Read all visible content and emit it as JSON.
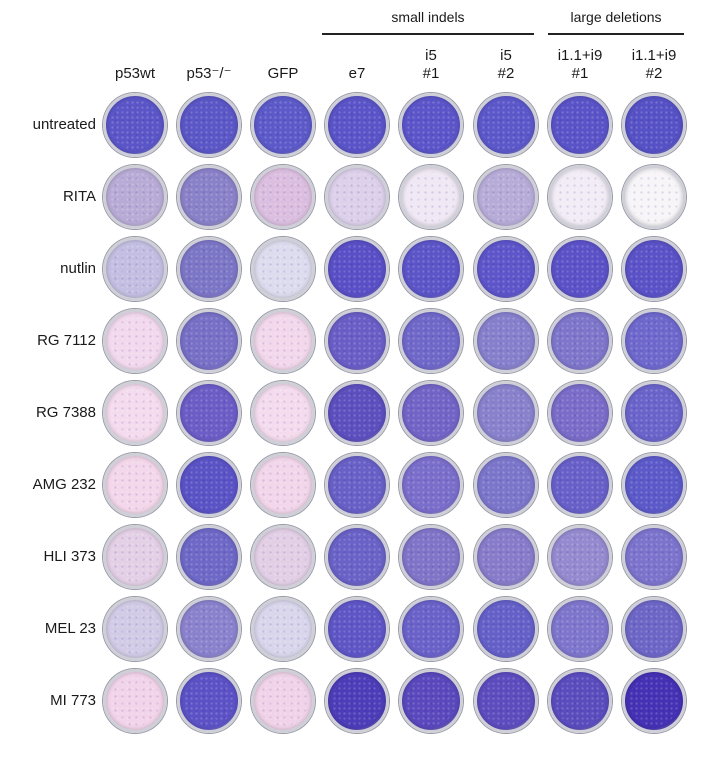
{
  "groups": [
    {
      "label": "small indels"
    },
    {
      "label": "large deletions"
    }
  ],
  "columns": [
    {
      "line1": "p53wt",
      "line2": ""
    },
    {
      "line1": "p53⁻/⁻",
      "line2": ""
    },
    {
      "line1": "GFP",
      "line2": ""
    },
    {
      "line1": "e7",
      "line2": ""
    },
    {
      "line1": "i5",
      "line2": "#1"
    },
    {
      "line1": "i5",
      "line2": "#2"
    },
    {
      "line1": "i1.1+i9",
      "line2": "#1"
    },
    {
      "line1": "i1.1+i9",
      "line2": "#2"
    }
  ],
  "rows": [
    {
      "label": "untreated"
    },
    {
      "label": "RITA"
    },
    {
      "label": "nutlin"
    },
    {
      "label": "RG 7112"
    },
    {
      "label": "RG 7388"
    },
    {
      "label": "AMG 232"
    },
    {
      "label": "HLI 373"
    },
    {
      "label": "MEL 23"
    },
    {
      "label": "MI 773"
    }
  ],
  "dish_colors": [
    [
      "#5b56c8",
      "#5b57c6",
      "#5c5ac9",
      "#5a54c8",
      "#5b55c9",
      "#5c58ca",
      "#5a53c8",
      "#5652c6"
    ],
    [
      "#b8acd6",
      "#8a82c8",
      "#dcbfe0",
      "#dcd0ea",
      "#f0e8f4",
      "#b7acd8",
      "#f2ecf6",
      "#f7f5f8"
    ],
    [
      "#c4bfe2",
      "#7c76c6",
      "#dcdcee",
      "#5a4fc6",
      "#5c55c8",
      "#5d55c9",
      "#5c52c8",
      "#5a52c6"
    ],
    [
      "#f2d9ee",
      "#7770c6",
      "#f3d8ec",
      "#6a5ec6",
      "#7068c9",
      "#8680cc",
      "#7e76ca",
      "#6e68cc"
    ],
    [
      "#f4dcee",
      "#6c5cc6",
      "#f4dcee",
      "#5d4fbe",
      "#7264c6",
      "#8882cc",
      "#7a6cc8",
      "#6a64ca"
    ],
    [
      "#f3d7ea",
      "#5a53c6",
      "#f2d6ea",
      "#6860c6",
      "#7a6ecb",
      "#7c76cb",
      "#6860c8",
      "#5c5ac9"
    ],
    [
      "#e4d0e6",
      "#6e68c6",
      "#e2cfe6",
      "#6a62c6",
      "#8074c8",
      "#887cca",
      "#958acf",
      "#7c74cc"
    ],
    [
      "#d2cbe6",
      "#8a82cc",
      "#d9d6ec",
      "#5f56c6",
      "#6a62c8",
      "#6460c8",
      "#7e76cc",
      "#6d66c6"
    ],
    [
      "#f2d4ea",
      "#5c52c6",
      "#f1d3e9",
      "#4d3db8",
      "#5a48bc",
      "#5c4cbe",
      "#5b4cbe",
      "#4431b4"
    ]
  ]
}
